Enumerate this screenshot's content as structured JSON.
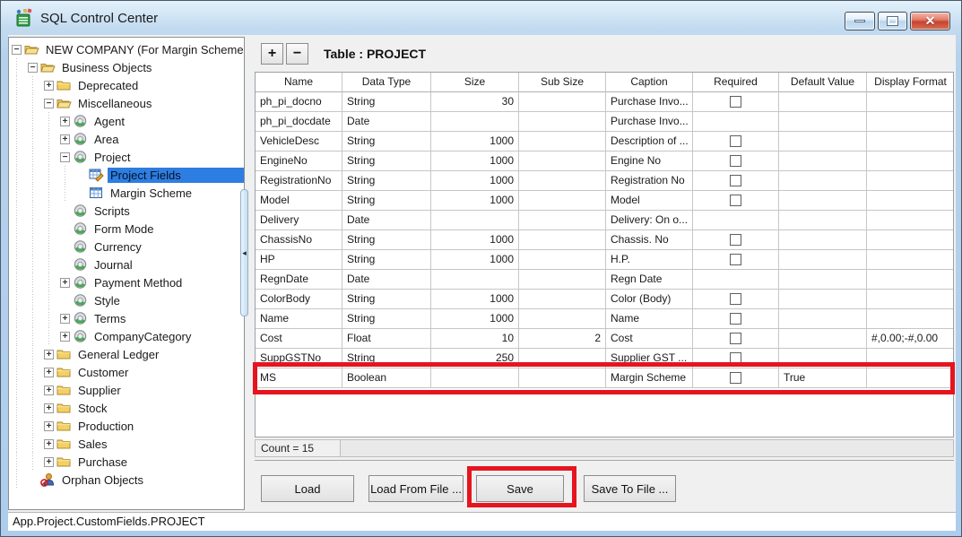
{
  "window": {
    "title": "SQL Control Center",
    "controls": {
      "minimize_icon": "minimize-dash",
      "maximize_icon": "maximize-square",
      "close_icon": "✕"
    }
  },
  "tree": {
    "items": [
      {
        "label": "NEW COMPANY (For Margin Scheme",
        "level": 0,
        "expander": "minus",
        "icon": "folder-open",
        "selected": false
      },
      {
        "label": "Business Objects",
        "level": 1,
        "expander": "minus",
        "icon": "folder-open",
        "selected": false
      },
      {
        "label": "Deprecated",
        "level": 2,
        "expander": "plus",
        "icon": "folder-closed",
        "selected": false
      },
      {
        "label": "Miscellaneous",
        "level": 2,
        "expander": "minus",
        "icon": "folder-open",
        "selected": false
      },
      {
        "label": "Agent",
        "level": 3,
        "expander": "plus",
        "icon": "component",
        "selected": false
      },
      {
        "label": "Area",
        "level": 3,
        "expander": "plus",
        "icon": "component",
        "selected": false
      },
      {
        "label": "Project",
        "level": 3,
        "expander": "minus",
        "icon": "component",
        "selected": false
      },
      {
        "label": "Project Fields",
        "level": 4,
        "expander": null,
        "icon": "table-edit",
        "selected": true
      },
      {
        "label": "Margin Scheme",
        "level": 4,
        "expander": null,
        "icon": "table",
        "selected": false
      },
      {
        "label": "Scripts",
        "level": 3,
        "expander": null,
        "icon": "component",
        "selected": false
      },
      {
        "label": "Form Mode",
        "level": 3,
        "expander": null,
        "icon": "component",
        "selected": false
      },
      {
        "label": "Currency",
        "level": 3,
        "expander": null,
        "icon": "component",
        "selected": false
      },
      {
        "label": "Journal",
        "level": 3,
        "expander": null,
        "icon": "component",
        "selected": false
      },
      {
        "label": "Payment Method",
        "level": 3,
        "expander": "plus",
        "icon": "component",
        "selected": false
      },
      {
        "label": "Style",
        "level": 3,
        "expander": null,
        "icon": "component",
        "selected": false
      },
      {
        "label": "Terms",
        "level": 3,
        "expander": "plus",
        "icon": "component",
        "selected": false
      },
      {
        "label": "CompanyCategory",
        "level": 3,
        "expander": "plus",
        "icon": "component",
        "selected": false
      },
      {
        "label": "General Ledger",
        "level": 2,
        "expander": "plus",
        "icon": "folder-closed",
        "selected": false
      },
      {
        "label": "Customer",
        "level": 2,
        "expander": "plus",
        "icon": "folder-closed",
        "selected": false
      },
      {
        "label": "Supplier",
        "level": 2,
        "expander": "plus",
        "icon": "folder-closed",
        "selected": false
      },
      {
        "label": "Stock",
        "level": 2,
        "expander": "plus",
        "icon": "folder-closed",
        "selected": false
      },
      {
        "label": "Production",
        "level": 2,
        "expander": "plus",
        "icon": "folder-closed",
        "selected": false
      },
      {
        "label": "Sales",
        "level": 2,
        "expander": "plus",
        "icon": "folder-closed",
        "selected": false
      },
      {
        "label": "Purchase",
        "level": 2,
        "expander": "plus",
        "icon": "folder-closed",
        "selected": false
      },
      {
        "label": "Orphan Objects",
        "level": 1,
        "expander": null,
        "icon": "orphan",
        "selected": false
      }
    ]
  },
  "toolbar": {
    "add_label": "+",
    "remove_label": "−",
    "table_label": "Table : PROJECT"
  },
  "grid": {
    "columns": [
      "Name",
      "Data Type",
      "Size",
      "Sub Size",
      "Caption",
      "Required",
      "Default Value",
      "Display Format"
    ],
    "rows": [
      {
        "name": "ph_pi_docno",
        "data_type": "String",
        "size": "30",
        "sub_size": "",
        "caption": "Purchase Invo...",
        "required_checkbox": true,
        "default_value": "",
        "display_format": ""
      },
      {
        "name": "ph_pi_docdate",
        "data_type": "Date",
        "size": "",
        "sub_size": "",
        "caption": "Purchase Invo...",
        "required_checkbox": false,
        "default_value": "",
        "display_format": ""
      },
      {
        "name": "VehicleDesc",
        "data_type": "String",
        "size": "1000",
        "sub_size": "",
        "caption": "Description of ...",
        "required_checkbox": true,
        "default_value": "",
        "display_format": ""
      },
      {
        "name": "EngineNo",
        "data_type": "String",
        "size": "1000",
        "sub_size": "",
        "caption": "Engine No",
        "required_checkbox": true,
        "default_value": "",
        "display_format": ""
      },
      {
        "name": "RegistrationNo",
        "data_type": "String",
        "size": "1000",
        "sub_size": "",
        "caption": "Registration No",
        "required_checkbox": true,
        "default_value": "",
        "display_format": ""
      },
      {
        "name": "Model",
        "data_type": "String",
        "size": "1000",
        "sub_size": "",
        "caption": "Model",
        "required_checkbox": true,
        "default_value": "",
        "display_format": ""
      },
      {
        "name": "Delivery",
        "data_type": "Date",
        "size": "",
        "sub_size": "",
        "caption": "Delivery: On o...",
        "required_checkbox": false,
        "default_value": "",
        "display_format": ""
      },
      {
        "name": "ChassisNo",
        "data_type": "String",
        "size": "1000",
        "sub_size": "",
        "caption": "Chassis. No",
        "required_checkbox": true,
        "default_value": "",
        "display_format": ""
      },
      {
        "name": "HP",
        "data_type": "String",
        "size": "1000",
        "sub_size": "",
        "caption": "H.P.",
        "required_checkbox": true,
        "default_value": "",
        "display_format": ""
      },
      {
        "name": "RegnDate",
        "data_type": "Date",
        "size": "",
        "sub_size": "",
        "caption": "Regn Date",
        "required_checkbox": false,
        "default_value": "",
        "display_format": ""
      },
      {
        "name": "ColorBody",
        "data_type": "String",
        "size": "1000",
        "sub_size": "",
        "caption": "Color (Body)",
        "required_checkbox": true,
        "default_value": "",
        "display_format": ""
      },
      {
        "name": "Name",
        "data_type": "String",
        "size": "1000",
        "sub_size": "",
        "caption": "Name",
        "required_checkbox": true,
        "default_value": "",
        "display_format": ""
      },
      {
        "name": "Cost",
        "data_type": "Float",
        "size": "10",
        "sub_size": "2",
        "caption": "Cost",
        "required_checkbox": true,
        "default_value": "",
        "display_format": "#,0.00;-#,0.00"
      },
      {
        "name": "SuppGSTNo",
        "data_type": "String",
        "size": "250",
        "sub_size": "",
        "caption": "Supplier GST ...",
        "required_checkbox": true,
        "default_value": "",
        "display_format": ""
      },
      {
        "name": "MS",
        "data_type": "Boolean",
        "size": "",
        "sub_size": "",
        "caption": "Margin Scheme",
        "required_checkbox": true,
        "default_value": "True",
        "display_format": "",
        "highlighted": true
      }
    ],
    "count_label": "Count = 15"
  },
  "buttons": [
    {
      "label": "Load"
    },
    {
      "label": "Load From File ..."
    },
    {
      "label": "Save",
      "annotated": true
    },
    {
      "label": "Save To File ..."
    }
  ],
  "annotations": {
    "color": "#e6141e",
    "targets": [
      "ms-row",
      "save-button"
    ]
  },
  "status_bar": {
    "text": "App.Project.CustomFields.PROJECT"
  },
  "colors": {
    "selection_blue": "#2e7de2",
    "annotation_red": "#e6141e",
    "titlebar_blue": "#c3dbf0"
  }
}
